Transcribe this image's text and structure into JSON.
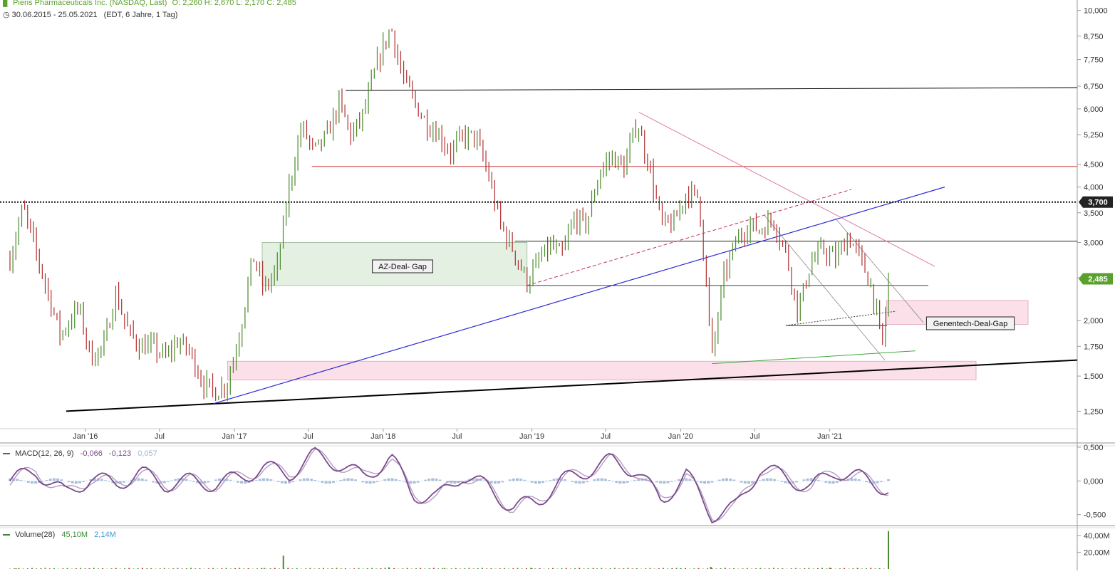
{
  "header": {
    "title": "Pieris Pharmaceuticals Inc. (NASDAQ, Last)",
    "ohlc": "O: 2,260  H: 2,670  L: 2,170  C: 2,485",
    "range": "30.06.2015 - 25.05.2021",
    "range_note": "(EDT, 6 Jahre, 1 Tag)"
  },
  "colors": {
    "up": "#4a8a2a",
    "down": "#b03030",
    "macd_line": "#7a4a8a",
    "macd_hist": "#a9c0dc",
    "resistance": "#000000",
    "red_line": "#d04040",
    "pink_line": "#e078a8",
    "blue_line": "#2b2bd6",
    "green_line": "#3ea83e",
    "gap_green": "#e4f0e2",
    "gap_pink": "#fbe0ea",
    "last_badge": "#5aa02c",
    "level_badge": "#222222"
  },
  "chart_data": [
    {
      "type": "line",
      "title": "Pieris Pharmaceuticals Inc. (NASDAQ, Last)",
      "scale": "log",
      "ylim": [
        1.15,
        10.4
      ],
      "y_ticks": [
        1.25,
        1.5,
        1.75,
        2.0,
        2.5,
        3.0,
        3.5,
        4.0,
        4.5,
        5.25,
        6.0,
        6.75,
        7.75,
        8.75,
        10.0
      ],
      "y_tick_labels": [
        "1,250",
        "1,500",
        "1,750",
        "2,000",
        "2,500",
        "3,000",
        "3,500",
        "4,000",
        "4,500",
        "5,250",
        "6,000",
        "6,750",
        "7,750",
        "8,750",
        "10,000"
      ],
      "x_range": [
        "2015-06-30",
        "2021-05-25"
      ],
      "x_ticks": [
        "2016-01-01",
        "2016-07-01",
        "2017-01-01",
        "2017-07-01",
        "2018-01-01",
        "2018-07-01",
        "2019-01-01",
        "2019-07-01",
        "2020-01-01",
        "2020-07-01",
        "2021-01-01"
      ],
      "x_tick_labels": [
        "Jan '16",
        "Jul",
        "Jan '17",
        "Jul",
        "Jan '18",
        "Jul",
        "Jan '19",
        "Jul",
        "Jan '20",
        "Jul",
        "Jan '21"
      ],
      "series": [
        {
          "name": "",
          "x": [
            "2015-06-30",
            "2015-08-01",
            "2015-09-15",
            "2015-11-01",
            "2015-12-15",
            "2016-01-15",
            "2016-02-15",
            "2016-03-15",
            "2016-04-15",
            "2016-05-15",
            "2016-06-15",
            "2016-07-15",
            "2016-08-15",
            "2016-09-15",
            "2016-10-15",
            "2016-11-15",
            "2016-12-15",
            "2017-01-15",
            "2017-02-15",
            "2017-03-15",
            "2017-04-15",
            "2017-05-15",
            "2017-06-15",
            "2017-07-15",
            "2017-08-15",
            "2017-09-15",
            "2017-10-15",
            "2017-11-15",
            "2017-12-15",
            "2018-01-20",
            "2018-02-15",
            "2018-03-15",
            "2018-04-15",
            "2018-05-15",
            "2018-06-15",
            "2018-07-15",
            "2018-08-15",
            "2018-09-15",
            "2018-10-15",
            "2018-11-15",
            "2018-12-20",
            "2019-01-15",
            "2019-02-15",
            "2019-03-15",
            "2019-04-15",
            "2019-05-15",
            "2019-06-15",
            "2019-07-15",
            "2019-08-15",
            "2019-09-15",
            "2019-10-15",
            "2019-11-15",
            "2019-12-15",
            "2020-01-15",
            "2020-02-15",
            "2020-03-18",
            "2020-04-15",
            "2020-05-15",
            "2020-06-15",
            "2020-07-15",
            "2020-08-15",
            "2020-09-15",
            "2020-10-15",
            "2020-11-15",
            "2020-12-15",
            "2021-01-15",
            "2021-02-15",
            "2021-03-15",
            "2021-04-15",
            "2021-05-10",
            "2021-05-25"
          ],
          "y": [
            2.75,
            3.6,
            2.6,
            1.85,
            2.15,
            1.65,
            1.75,
            2.3,
            1.9,
            1.75,
            1.75,
            1.65,
            1.8,
            1.7,
            1.45,
            1.38,
            1.45,
            1.9,
            2.8,
            2.35,
            2.6,
            4.0,
            5.5,
            4.8,
            5.2,
            6.2,
            5.2,
            5.9,
            7.5,
            9.2,
            7.2,
            6.3,
            5.6,
            5.3,
            4.8,
            5.2,
            5.2,
            4.3,
            3.3,
            2.9,
            2.45,
            2.7,
            2.95,
            2.8,
            3.4,
            3.3,
            4.3,
            4.7,
            4.4,
            5.6,
            4.5,
            3.3,
            3.3,
            3.9,
            3.8,
            1.65,
            2.5,
            3.0,
            3.3,
            3.2,
            3.4,
            2.85,
            2.1,
            2.7,
            2.9,
            2.75,
            3.1,
            2.8,
            2.35,
            1.75,
            2.485
          ]
        }
      ],
      "annotations": [
        "AZ-Deal- Gap",
        "Genentech-Deal-Gap"
      ],
      "price_badges": [
        "3,700",
        "2,485"
      ],
      "grid": false
    },
    {
      "type": "line",
      "title": "MACD(12, 26, 9)",
      "values_text": [
        "-0,066",
        "-0,123",
        "0,057"
      ],
      "ylim": [
        -0.62,
        0.5
      ],
      "y_ticks": [
        0.5,
        0.0,
        -0.5
      ],
      "y_tick_labels": [
        "0,500",
        "0,000",
        "-0,500"
      ],
      "series": [
        {
          "name": "",
          "x": [
            "2015-06-30",
            "2015-09-01",
            "2015-11-15",
            "2016-01-15",
            "2016-03-15",
            "2016-05-15",
            "2016-07-15",
            "2016-09-15",
            "2016-11-15",
            "2017-01-15",
            "2017-03-15",
            "2017-05-15",
            "2017-07-15",
            "2017-09-15",
            "2017-11-15",
            "2018-01-20",
            "2018-03-15",
            "2018-05-15",
            "2018-07-15",
            "2018-09-15",
            "2018-11-15",
            "2019-01-15",
            "2019-03-15",
            "2019-05-15",
            "2019-07-15",
            "2019-09-15",
            "2019-11-15",
            "2020-01-15",
            "2020-03-18",
            "2020-05-15",
            "2020-07-15",
            "2020-09-15",
            "2020-11-15",
            "2021-01-15",
            "2021-03-15",
            "2021-05-25"
          ],
          "y": [
            0.0,
            0.15,
            -0.2,
            0.05,
            -0.05,
            0.12,
            -0.05,
            0.0,
            -0.05,
            0.05,
            0.2,
            0.1,
            0.38,
            0.25,
            0.05,
            0.35,
            -0.2,
            -0.25,
            0.1,
            -0.1,
            -0.4,
            -0.3,
            0.0,
            0.15,
            0.3,
            0.15,
            -0.3,
            0.1,
            -0.5,
            -0.4,
            0.2,
            0.05,
            -0.1,
            0.15,
            0.05,
            -0.12
          ]
        }
      ],
      "grid": false
    },
    {
      "type": "bar",
      "title": "Volume(28)",
      "values_text": [
        "45,10M",
        "2,14M"
      ],
      "ylim": [
        0,
        45
      ],
      "y_ticks": [
        20,
        40
      ],
      "y_tick_labels": [
        "20,00M",
        "40,00M"
      ],
      "series": [
        {
          "name": "",
          "x": [
            "2015-07-15",
            "2016-01-01",
            "2016-06-01",
            "2017-03-15",
            "2017-05-01",
            "2018-01-15",
            "2018-06-01",
            "2019-01-01",
            "2019-06-01",
            "2020-01-01",
            "2020-03-15",
            "2021-01-01",
            "2021-05-25"
          ],
          "y": [
            0.8,
            0.6,
            0.5,
            1.2,
            16.0,
            2.0,
            1.2,
            1.0,
            1.2,
            1.0,
            2.5,
            1.5,
            45.1
          ]
        }
      ],
      "grid": false
    }
  ]
}
